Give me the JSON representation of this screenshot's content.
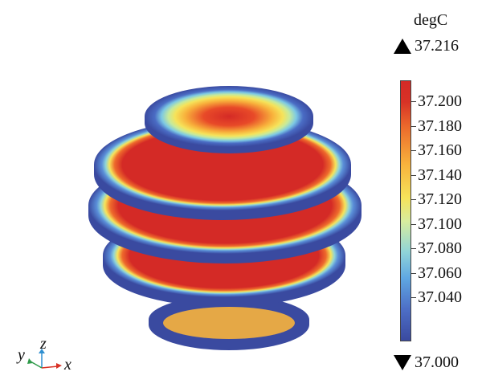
{
  "legend": {
    "unit": "degC",
    "max_label": "37.216",
    "min_label": "37.000",
    "ticks": [
      "37.200",
      "37.180",
      "37.160",
      "37.140",
      "37.120",
      "37.100",
      "37.080",
      "37.060",
      "37.040"
    ]
  },
  "axes": {
    "x": "x",
    "y": "y",
    "z": "z"
  },
  "colors": {
    "cold": "#3a4aa0",
    "cyan": "#8fd4d8",
    "yellow": "#f6e35a",
    "orange": "#f8b23c",
    "hot": "#d42a26"
  }
}
